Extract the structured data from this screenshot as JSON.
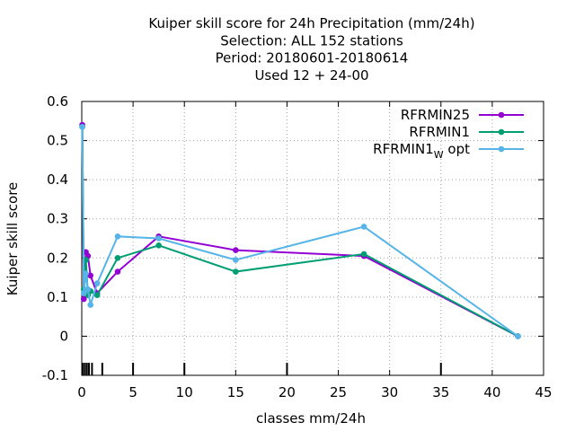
{
  "chart_data": {
    "type": "line",
    "title_lines": [
      "Kuiper skill score  for 24h Precipitation (mm/24h)",
      "Selection: ALL    152 stations",
      "Period: 20180601-20180614",
      "Used  12 + 24-00"
    ],
    "xlabel": "classes mm/24h",
    "ylabel": "Kuiper skill score",
    "xlim": [
      0,
      45
    ],
    "ylim": [
      -0.1,
      0.6
    ],
    "xticks": [
      0,
      5,
      10,
      15,
      20,
      25,
      30,
      35,
      40,
      45
    ],
    "yticks": [
      -0.1,
      0,
      0.1,
      0.2,
      0.3,
      0.4,
      0.5,
      0.6
    ],
    "ytick_labels": [
      "-0.1",
      "0",
      "0.1",
      "0.2",
      "0.3",
      "0.4",
      "0.5",
      "0.6"
    ],
    "grid": true,
    "legend_position": "top-right",
    "class_marks": [
      0.1,
      0.3,
      0.5,
      0.7,
      1,
      2,
      5,
      10,
      20,
      35
    ],
    "series": [
      {
        "name": "RFRMIN25",
        "name_sub": "",
        "name_suffix": "",
        "color": "#9400d3",
        "x": [
          0.05,
          0.2,
          0.4,
          0.6,
          0.85,
          1.5,
          3.5,
          7.5,
          15,
          27.5,
          42.5
        ],
        "y": [
          0.54,
          0.095,
          0.215,
          0.205,
          0.155,
          0.11,
          0.165,
          0.255,
          0.22,
          0.205,
          0.0
        ]
      },
      {
        "name": "RFRMIN1",
        "name_sub": "",
        "name_suffix": "",
        "color": "#009e73",
        "x": [
          0.05,
          0.2,
          0.4,
          0.6,
          0.85,
          1.5,
          3.5,
          7.5,
          15,
          27.5,
          42.5
        ],
        "y": [
          0.535,
          0.12,
          0.195,
          0.105,
          0.115,
          0.105,
          0.2,
          0.232,
          0.165,
          0.21,
          0.0
        ]
      },
      {
        "name": "RFRMIN1",
        "name_sub": "W",
        "name_suffix": " opt",
        "color": "#56b4e9",
        "x": [
          0.05,
          0.2,
          0.4,
          0.6,
          0.85,
          1.5,
          3.5,
          7.5,
          15,
          27.5,
          42.5
        ],
        "y": [
          0.535,
          0.11,
          0.16,
          0.12,
          0.08,
          0.135,
          0.255,
          0.25,
          0.195,
          0.28,
          0.0
        ]
      }
    ]
  }
}
